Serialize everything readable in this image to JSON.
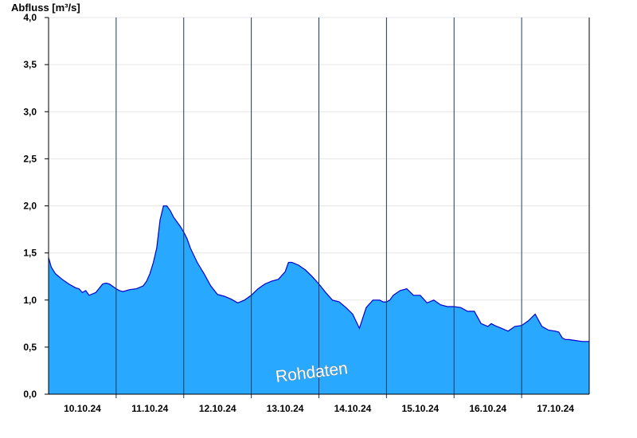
{
  "chart_data": {
    "type": "area",
    "ylabel": "Abfluss [m³/s]",
    "ylim": [
      0,
      4.0
    ],
    "yticks": [
      0,
      0.5,
      1.0,
      1.5,
      2.0,
      2.5,
      3.0,
      3.5,
      4.0
    ],
    "ytick_labels": [
      "0,0",
      "0,5",
      "1,0",
      "1,5",
      "2,0",
      "2,5",
      "3,0",
      "3,5",
      "4,0"
    ],
    "xlim": [
      0,
      8
    ],
    "day_boundaries": [
      1,
      2,
      3,
      4,
      5,
      6,
      7
    ],
    "xtick_positions": [
      0.5,
      1.5,
      2.5,
      3.5,
      4.5,
      5.5,
      6.5,
      7.5
    ],
    "xtick_labels": [
      "10.10.24",
      "11.10.24",
      "12.10.24",
      "13.10.24",
      "14.10.24",
      "15.10.24",
      "16.10.24",
      "17.10.24"
    ],
    "grid": "horizontal",
    "fill_color": "#29a8ff",
    "line_color": "#0000cc",
    "watermark": "Rohdaten",
    "series": [
      {
        "x": [
          0,
          0.04,
          0.1,
          0.2,
          0.3,
          0.4,
          0.45,
          0.5,
          0.55,
          0.6,
          0.7,
          0.8,
          0.85,
          0.9,
          1.0,
          1.05,
          1.1,
          1.2,
          1.3,
          1.4,
          1.45,
          1.5,
          1.55,
          1.6,
          1.65,
          1.7,
          1.75,
          1.8,
          1.85,
          1.9,
          1.95,
          2.0,
          2.05,
          2.1,
          2.2,
          2.3,
          2.4,
          2.5,
          2.6,
          2.7,
          2.8,
          2.9,
          3.0,
          3.1,
          3.2,
          3.3,
          3.4,
          3.5,
          3.55,
          3.6,
          3.7,
          3.8,
          3.9,
          4.0,
          4.1,
          4.2,
          4.3,
          4.4,
          4.5,
          4.6,
          4.7,
          4.8,
          4.9,
          4.95,
          5.0,
          5.05,
          5.1,
          5.2,
          5.3,
          5.4,
          5.5,
          5.6,
          5.7,
          5.8,
          5.9,
          6.0,
          6.1,
          6.2,
          6.3,
          6.4,
          6.5,
          6.55,
          6.6,
          6.7,
          6.8,
          6.9,
          7.0,
          7.1,
          7.2,
          7.3,
          7.4,
          7.5,
          7.55,
          7.6,
          7.65,
          7.7,
          7.8,
          7.9,
          8.0
        ],
        "y": [
          1.45,
          1.35,
          1.28,
          1.22,
          1.17,
          1.13,
          1.12,
          1.08,
          1.1,
          1.05,
          1.08,
          1.17,
          1.18,
          1.17,
          1.12,
          1.1,
          1.09,
          1.11,
          1.12,
          1.15,
          1.2,
          1.28,
          1.4,
          1.55,
          1.85,
          2.0,
          2.0,
          1.95,
          1.88,
          1.83,
          1.78,
          1.72,
          1.65,
          1.55,
          1.4,
          1.28,
          1.15,
          1.06,
          1.04,
          1.01,
          0.97,
          1.0,
          1.05,
          1.12,
          1.17,
          1.2,
          1.22,
          1.3,
          1.4,
          1.4,
          1.37,
          1.32,
          1.25,
          1.17,
          1.08,
          1.0,
          0.98,
          0.92,
          0.85,
          0.7,
          0.92,
          1.0,
          1.0,
          0.98,
          0.98,
          1.0,
          1.05,
          1.1,
          1.12,
          1.05,
          1.05,
          0.97,
          1.0,
          0.95,
          0.93,
          0.93,
          0.92,
          0.88,
          0.88,
          0.75,
          0.72,
          0.75,
          0.73,
          0.7,
          0.67,
          0.72,
          0.73,
          0.78,
          0.85,
          0.72,
          0.68,
          0.67,
          0.66,
          0.6,
          0.58,
          0.58,
          0.57,
          0.56,
          0.56
        ]
      }
    ]
  }
}
